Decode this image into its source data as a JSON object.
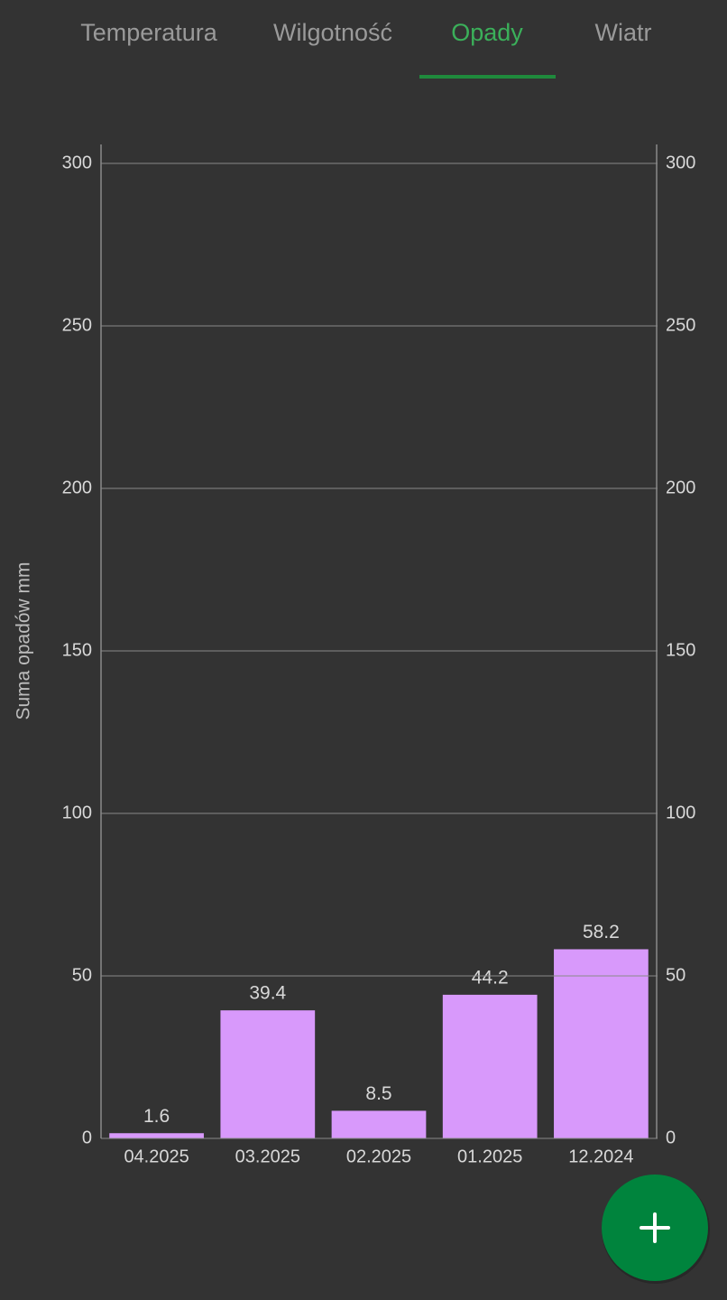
{
  "tabs": {
    "items": [
      "Temperatura",
      "Wilgotność",
      "Opady",
      "Wiatr"
    ],
    "selected": 2
  },
  "chart_data": {
    "type": "bar",
    "ylabel": "Suma opadów mm",
    "categories": [
      "04.2025",
      "03.2025",
      "02.2025",
      "01.2025",
      "12.2024"
    ],
    "values": [
      1.6,
      39.4,
      8.5,
      44.2,
      58.2
    ],
    "color": "#d899fb",
    "ylim": [
      0,
      300
    ],
    "yticks": [
      0,
      50,
      100,
      150,
      200,
      250,
      300
    ],
    "y2lim": [
      0,
      300
    ],
    "y2ticks": [
      0,
      50,
      100,
      150,
      200,
      250,
      300
    ],
    "grid": true
  }
}
